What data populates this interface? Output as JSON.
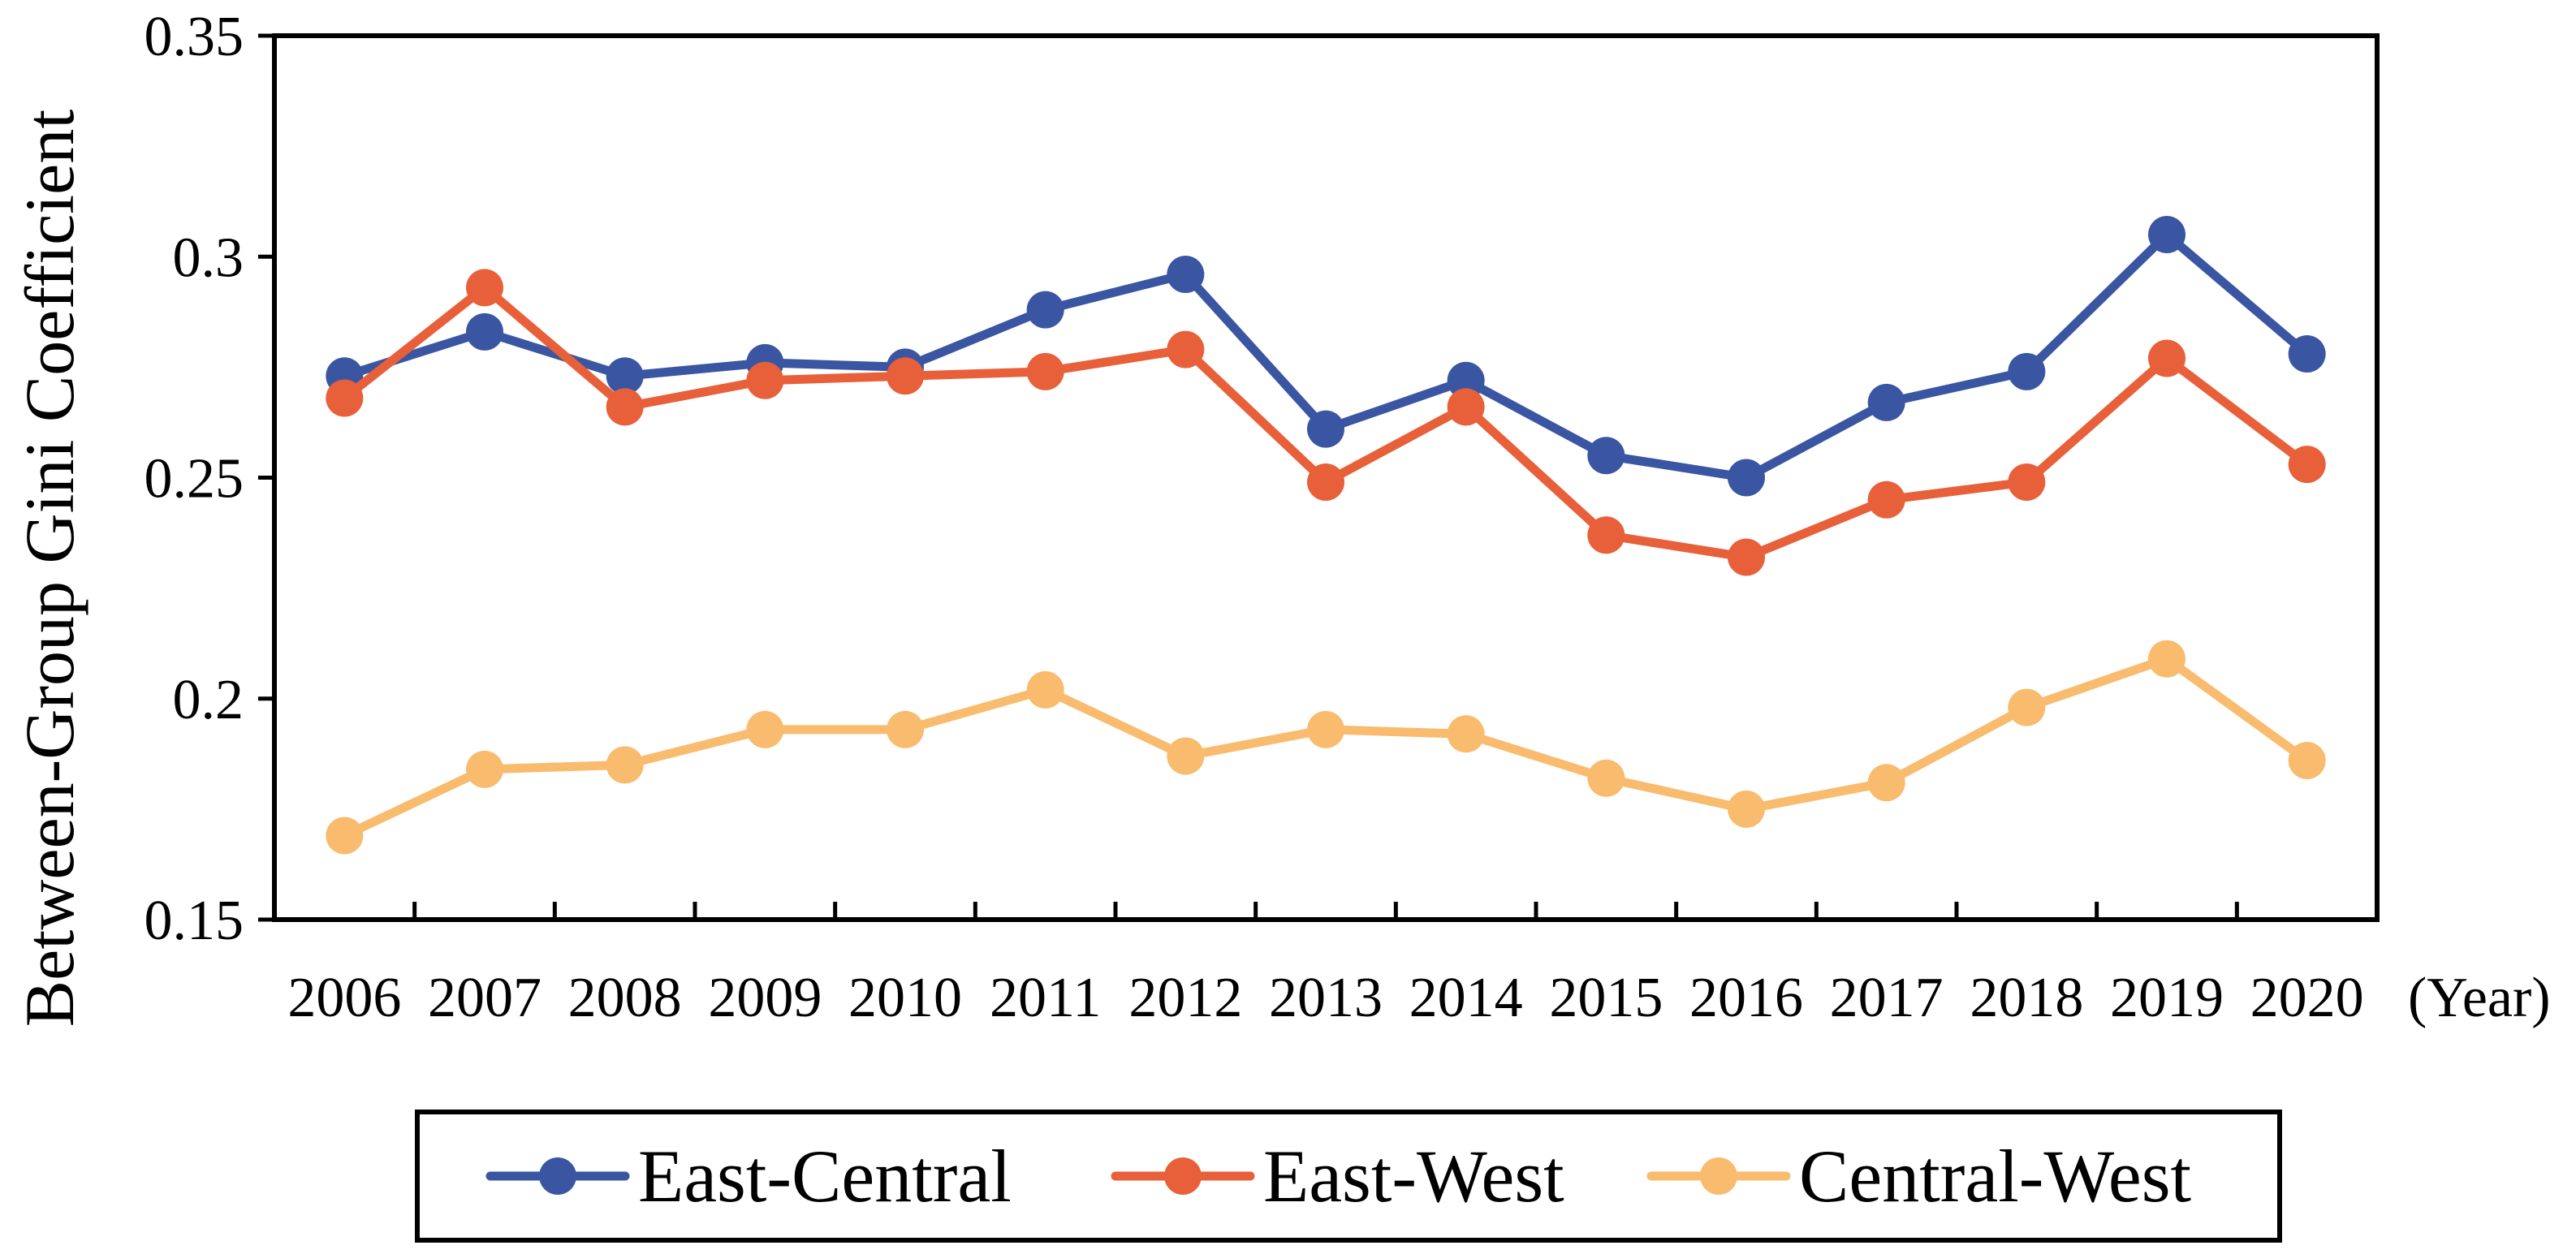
{
  "chart_data": {
    "type": "line",
    "title": "",
    "xlabel": "",
    "x_unit_label": "(Year)",
    "ylabel": "Between-Group Gini Coefficient",
    "ylim": [
      0.15,
      0.35
    ],
    "y_ticks": [
      0.15,
      0.2,
      0.25,
      0.3,
      0.35
    ],
    "y_tick_labels": [
      "0.15",
      "0.2",
      "0.25",
      "0.3",
      "0.35"
    ],
    "categories": [
      "2006",
      "2007",
      "2008",
      "2009",
      "2010",
      "2011",
      "2012",
      "2013",
      "2014",
      "2015",
      "2016",
      "2017",
      "2018",
      "2019",
      "2020"
    ],
    "grid": false,
    "legend_position": "bottom",
    "series": [
      {
        "name": "East-Central",
        "color": "#3A56A3",
        "values": [
          0.273,
          0.283,
          0.273,
          0.276,
          0.275,
          0.288,
          0.296,
          0.261,
          0.272,
          0.255,
          0.25,
          0.267,
          0.274,
          0.305,
          0.278
        ]
      },
      {
        "name": "East-West",
        "color": "#E8603A",
        "values": [
          0.268,
          0.293,
          0.266,
          0.272,
          0.273,
          0.274,
          0.279,
          0.249,
          0.266,
          0.237,
          0.232,
          0.245,
          0.249,
          0.277,
          0.253
        ]
      },
      {
        "name": "Central-West",
        "color": "#F9BB6E",
        "values": [
          0.169,
          0.184,
          0.185,
          0.193,
          0.193,
          0.202,
          0.187,
          0.193,
          0.192,
          0.182,
          0.175,
          0.181,
          0.198,
          0.209,
          0.186
        ]
      }
    ]
  }
}
